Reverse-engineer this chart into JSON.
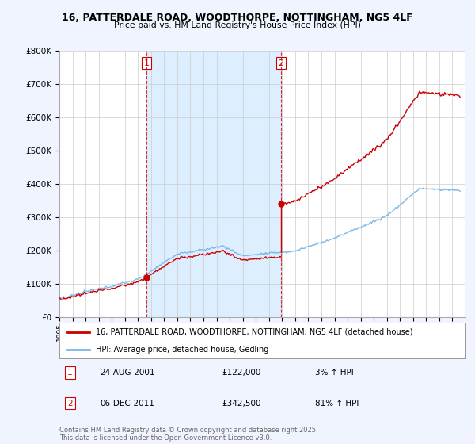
{
  "title": "16, PATTERDALE ROAD, WOODTHORPE, NOTTINGHAM, NG5 4LF",
  "subtitle": "Price paid vs. HM Land Registry's House Price Index (HPI)",
  "legend_line1": "16, PATTERDALE ROAD, WOODTHORPE, NOTTINGHAM, NG5 4LF (detached house)",
  "legend_line2": "HPI: Average price, detached house, Gedling",
  "annotation1_label": "1",
  "annotation1_date": "24-AUG-2001",
  "annotation1_price": "£122,000",
  "annotation1_hpi": "3% ↑ HPI",
  "annotation2_label": "2",
  "annotation2_date": "06-DEC-2011",
  "annotation2_price": "£342,500",
  "annotation2_hpi": "81% ↑ HPI",
  "footnote": "Contains HM Land Registry data © Crown copyright and database right 2025.\nThis data is licensed under the Open Government Licence v3.0.",
  "sale1_year": 2001.65,
  "sale1_value": 122000,
  "sale2_year": 2011.92,
  "sale2_value": 342500,
  "hpi_color": "#7ab8e8",
  "price_color": "#cc0000",
  "shade_color": "#ddeeff",
  "background_color": "#f0f4ff",
  "plot_bg": "#ffffff",
  "ylim": [
    0,
    800000
  ],
  "xlim_start": 1995,
  "xlim_end": 2026
}
